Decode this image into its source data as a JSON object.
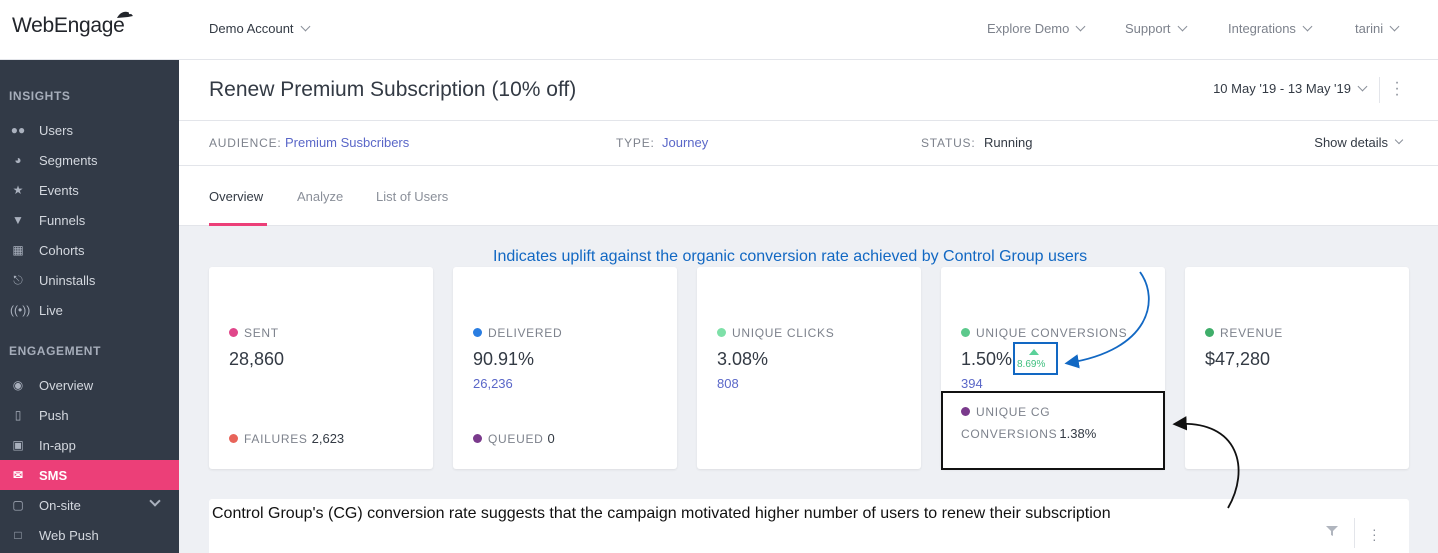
{
  "brand": {
    "logo_text": "WebEngage"
  },
  "top": {
    "account": "Demo Account",
    "nav": [
      "Explore Demo",
      "Support",
      "Integrations",
      "tarini"
    ]
  },
  "sidebar": {
    "insights_header": "INSIGHTS",
    "insights": [
      {
        "label": "Users",
        "icon": "users-icon"
      },
      {
        "label": "Segments",
        "icon": "pie-icon"
      },
      {
        "label": "Events",
        "icon": "star-icon"
      },
      {
        "label": "Funnels",
        "icon": "funnel-icon"
      },
      {
        "label": "Cohorts",
        "icon": "grid-icon"
      },
      {
        "label": "Uninstalls",
        "icon": "uninstall-icon"
      },
      {
        "label": "Live",
        "icon": "broadcast-icon"
      }
    ],
    "engagement_header": "ENGAGEMENT",
    "engagement": [
      {
        "label": "Overview",
        "icon": "eye-icon"
      },
      {
        "label": "Push",
        "icon": "phone-icon"
      },
      {
        "label": "In-app",
        "icon": "inapp-icon"
      },
      {
        "label": "SMS",
        "icon": "sms-icon"
      },
      {
        "label": "On-site",
        "icon": "onsite-icon"
      },
      {
        "label": "Web Push",
        "icon": "webpush-icon"
      }
    ],
    "active": "SMS",
    "active_color": "#ec3f78"
  },
  "header": {
    "title": "Renew Premium Subscription (10% off)",
    "date_range": "10 May '19 - 13 May '19"
  },
  "meta": {
    "audience_label": "AUDIENCE:",
    "audience_value": "Premium Susbcribers",
    "type_label": "TYPE:",
    "type_value": "Journey",
    "status_label": "STATUS:",
    "status_value": "Running",
    "show_details": "Show details"
  },
  "tabs": [
    "Overview",
    "Analyze",
    "List of Users"
  ],
  "cards": {
    "sent": {
      "label": "SENT",
      "value": "28,860",
      "foot_label": "FAILURES",
      "foot_value": "2,623",
      "dot": "#e0468a",
      "foot_dot": "#e8645a"
    },
    "delivered": {
      "label": "DELIVERED",
      "value": "90.91%",
      "sub": "26,236",
      "foot_label": "QUEUED",
      "foot_value": "0",
      "dot": "#2a7de1",
      "foot_dot": "#7a3a8c"
    },
    "clicks": {
      "label": "UNIQUE CLICKS",
      "value": "3.08%",
      "sub": "808",
      "dot": "#7ee0a8"
    },
    "conversions": {
      "label": "UNIQUE CONVERSIONS",
      "value": "1.50%",
      "sub": "394",
      "uplift": "8.69%",
      "dot": "#5cc98c"
    },
    "cg": {
      "label_line1": "UNIQUE CG",
      "label_line2": "CONVERSIONS",
      "value": "1.38%",
      "dot": "#7a3a8c"
    },
    "revenue": {
      "label": "REVENUE",
      "value": "$47,280",
      "dot": "#3fae6a"
    }
  },
  "annotations": {
    "uplift_note": "Indicates uplift against the organic conversion rate achieved by Control Group users",
    "cg_note": "Control Group's (CG) conversion rate suggests that the campaign motivated higher number of users to renew their subscription"
  }
}
